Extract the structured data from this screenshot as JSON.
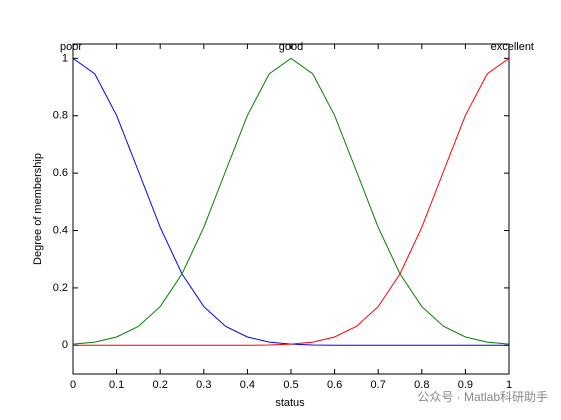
{
  "chart_data": {
    "type": "line",
    "xlabel": "status",
    "ylabel": "Degree of membership",
    "x": [
      0,
      0.05,
      0.1,
      0.15,
      0.2,
      0.25,
      0.3,
      0.35,
      0.4,
      0.45,
      0.5,
      0.55,
      0.6,
      0.65,
      0.7,
      0.75,
      0.8,
      0.85,
      0.9,
      0.95,
      1
    ],
    "series": [
      {
        "name": "poor",
        "color": "#0000ff",
        "values": [
          1,
          0.946,
          0.801,
          0.607,
          0.411,
          0.249,
          0.135,
          0.066,
          0.029,
          0.011,
          0.004,
          0.001,
          0,
          0,
          0,
          0,
          0,
          0,
          0,
          0,
          0
        ]
      },
      {
        "name": "good",
        "color": "#008000",
        "values": [
          0.004,
          0.011,
          0.029,
          0.066,
          0.135,
          0.249,
          0.411,
          0.607,
          0.801,
          0.946,
          1,
          0.946,
          0.801,
          0.607,
          0.411,
          0.249,
          0.135,
          0.066,
          0.029,
          0.011,
          0.004
        ]
      },
      {
        "name": "excellent",
        "color": "#ff0000",
        "values": [
          0,
          0,
          0,
          0,
          0,
          0,
          0,
          0,
          0,
          0.001,
          0.004,
          0.011,
          0.029,
          0.066,
          0.135,
          0.249,
          0.411,
          0.607,
          0.801,
          0.946,
          1
        ]
      }
    ],
    "xlim": [
      0,
      1
    ],
    "xticks": [
      0,
      0.1,
      0.2,
      0.3,
      0.4,
      0.5,
      0.6,
      0.7,
      0.8,
      0.9,
      1
    ],
    "ylim": [
      -0.1,
      1.05
    ],
    "yticks": [
      0,
      0.2,
      0.4,
      0.6,
      0.8,
      1
    ],
    "watermark": "公众号 · Matlab科研助手"
  }
}
